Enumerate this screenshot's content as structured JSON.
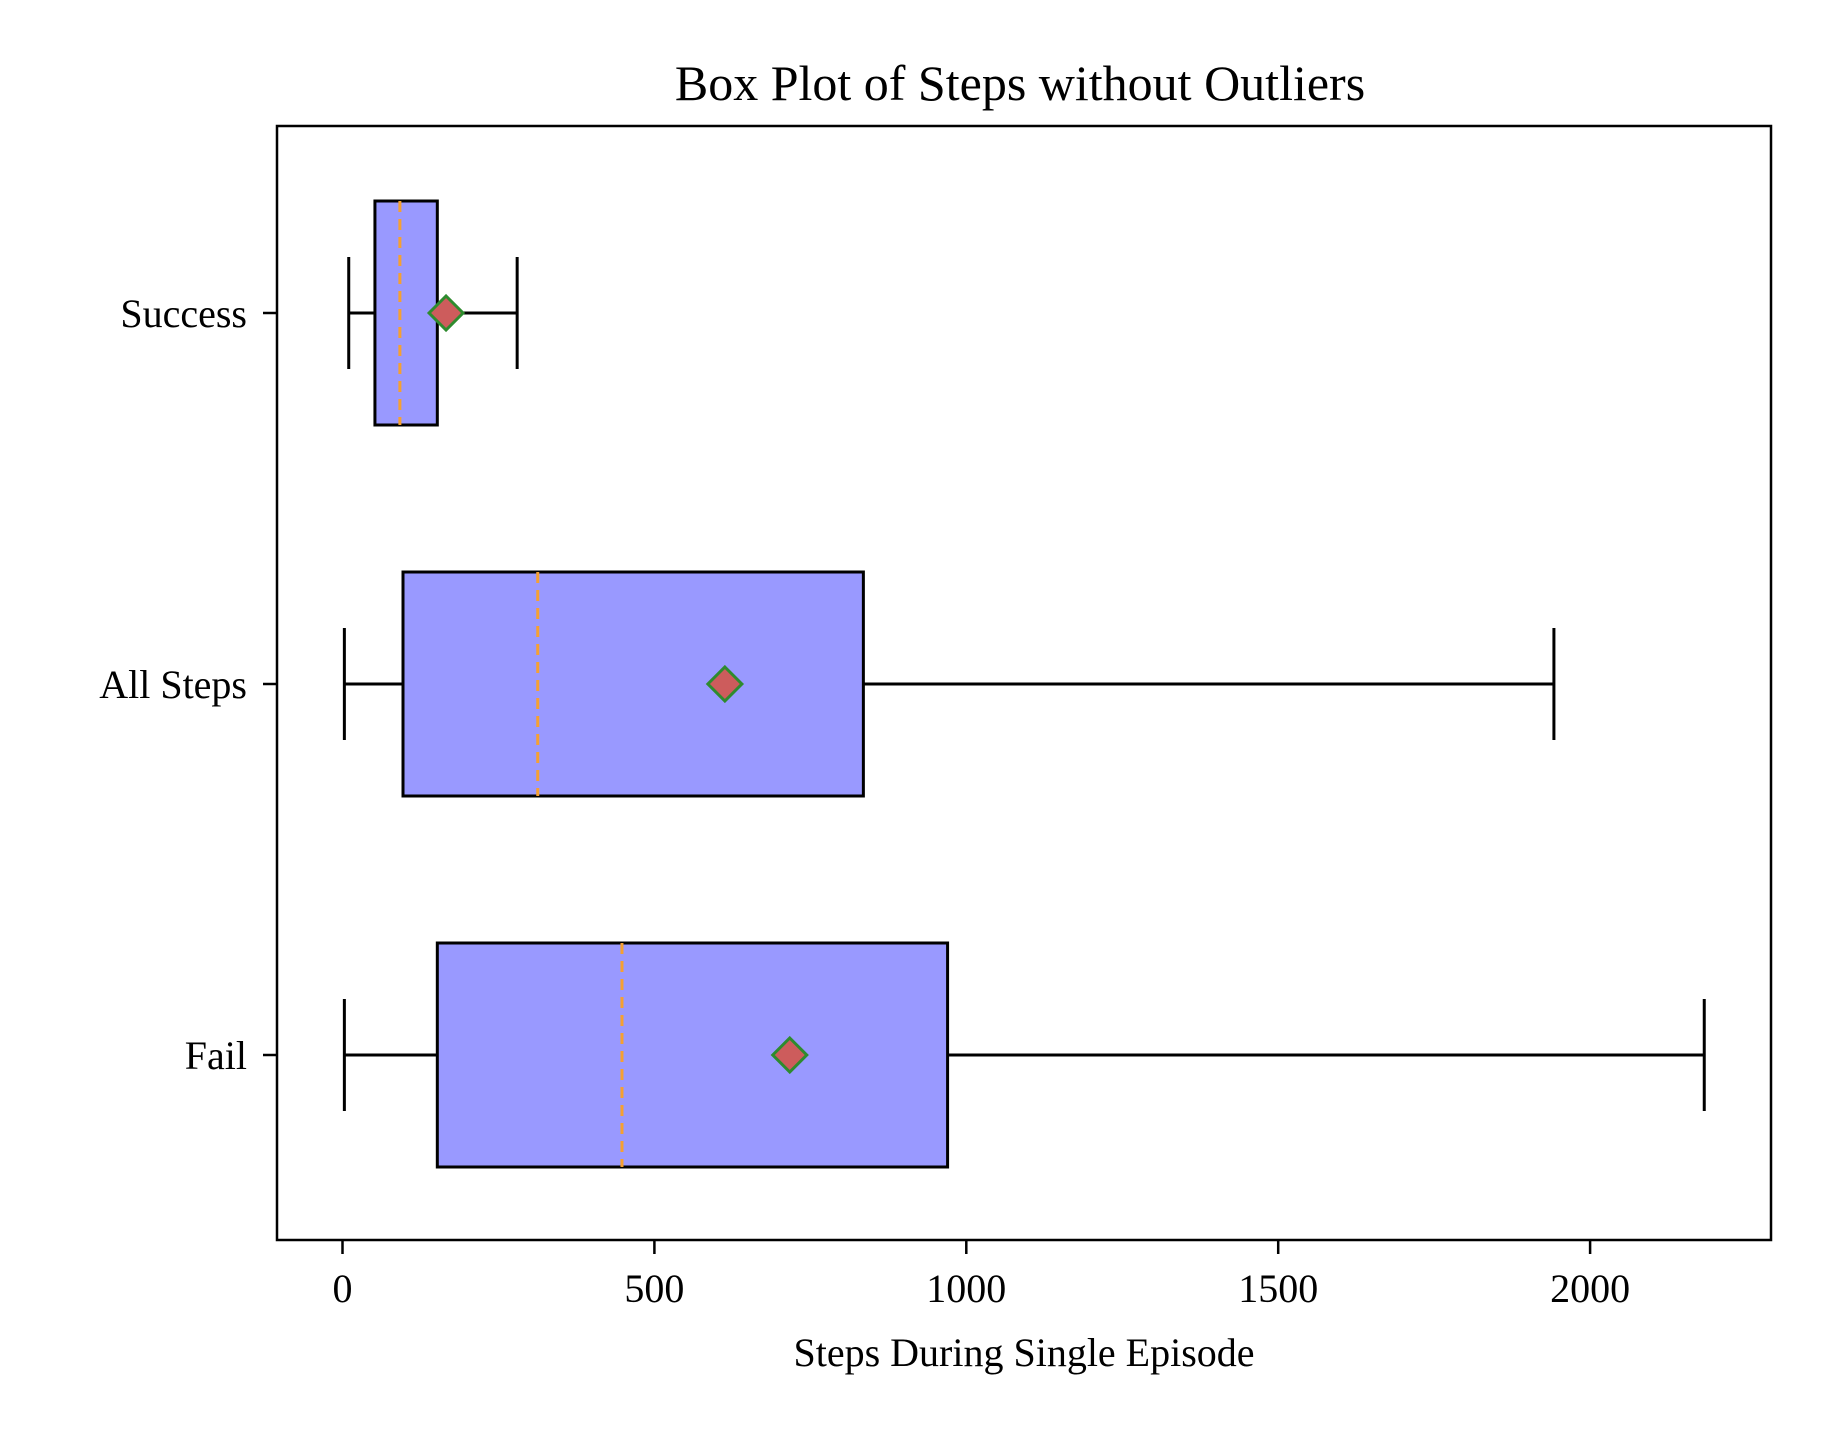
{
  "chart_data": {
    "type": "boxplot",
    "orientation": "horizontal",
    "title": "Box Plot of Steps without Outliers",
    "xlabel": "Steps During Single Episode",
    "ylabel": "",
    "xlim": [
      -105,
      2290
    ],
    "xticks": [
      0,
      500,
      1000,
      1500,
      2000
    ],
    "grid": false,
    "colors": {
      "box_fill": "#9999ff",
      "box_edge": "#000000",
      "median": "#f5a032",
      "mean_fill": "#cd5c5c",
      "mean_edge": "#2e8b2e",
      "whisker": "#000000"
    },
    "categories": [
      "Success",
      "All Steps",
      "Fail"
    ],
    "boxes": [
      {
        "name": "Success",
        "whisker_low": 10,
        "q1": 52,
        "median": 92,
        "q3": 152,
        "whisker_high": 280,
        "mean": 166
      },
      {
        "name": "All Steps",
        "whisker_low": 3,
        "q1": 97,
        "median": 313,
        "q3": 835,
        "whisker_high": 1942,
        "mean": 613
      },
      {
        "name": "Fail",
        "whisker_low": 3,
        "q1": 152,
        "median": 448,
        "q3": 970,
        "whisker_high": 2183,
        "mean": 717
      }
    ]
  }
}
